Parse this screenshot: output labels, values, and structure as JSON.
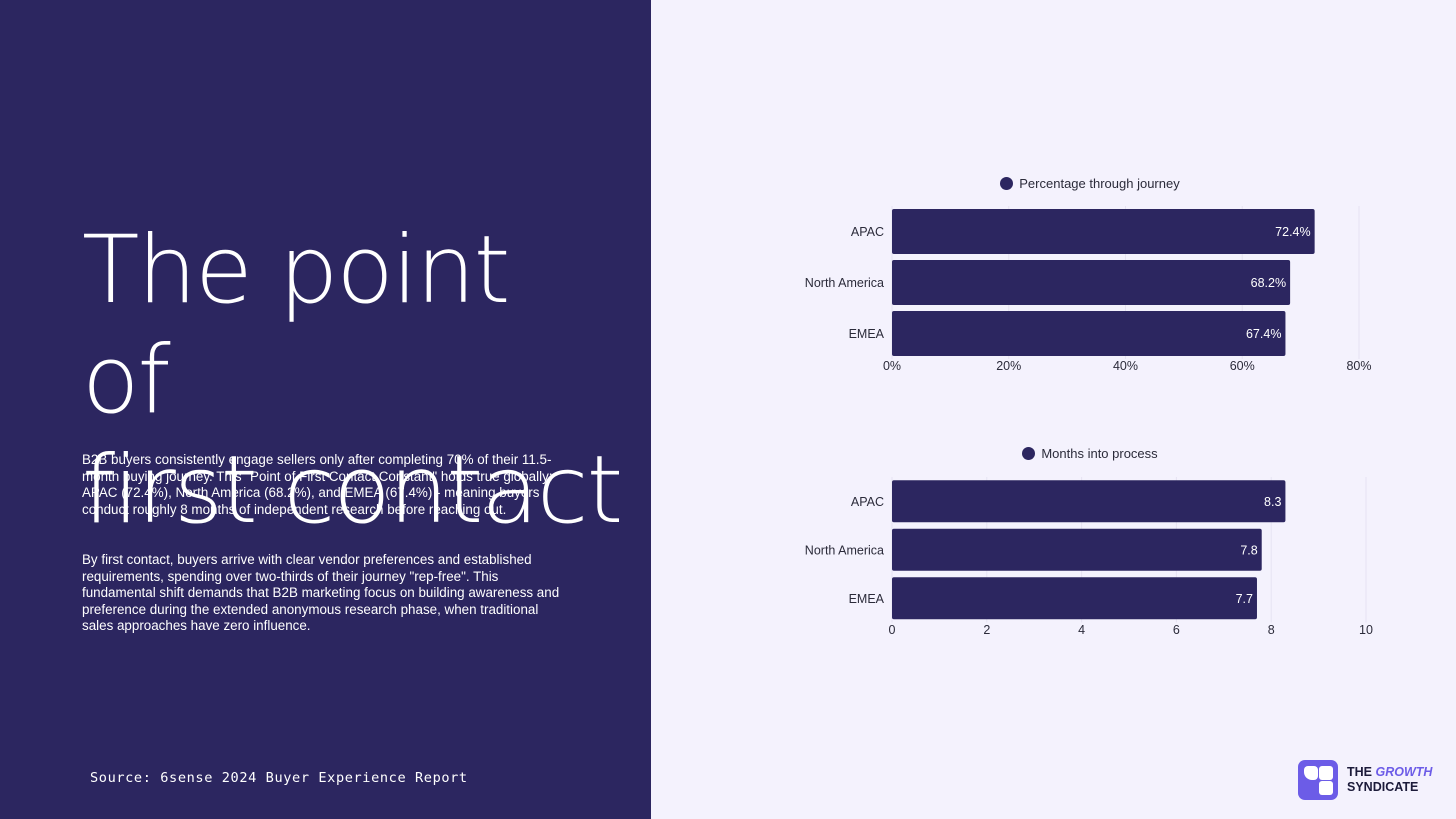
{
  "left_panel": {
    "title": "The point of\nfirst contact",
    "paragraph1": "B2B buyers consistently engage sellers only after completing 70% of their 11.5-month buying journey. This \"Point of First Contact Constant\" holds true globally: APAC (72.4%), North America (68.2%), and EMEA (67.4%) - meaning buyers conduct roughly 8 months of independent research before reaching out.",
    "paragraph2": "By first contact, buyers arrive with clear vendor preferences and established requirements, spending over two-thirds of their journey \"rep-free\". This fundamental shift demands that B2B marketing focus on building awareness and preference during the extended anonymous research phase, when traditional sales approaches have zero influence.",
    "source": "Source: 6sense 2024 Buyer Experience Report"
  },
  "brand": {
    "the": "THE",
    "growth": "GROWTH",
    "syndicate": "SYNDICATE",
    "logo_color": "#6c5ce7"
  },
  "chart_data": [
    {
      "type": "bar",
      "orientation": "horizontal",
      "categories": [
        "APAC",
        "North America",
        "EMEA"
      ],
      "series": [
        {
          "name": "Percentage through journey",
          "values": [
            72.4,
            68.2,
            67.4
          ]
        }
      ],
      "data_labels": [
        "72.4%",
        "68.2%",
        "67.4%"
      ],
      "xlim": [
        0,
        80
      ],
      "xticks": [
        0,
        20,
        40,
        60,
        80
      ],
      "xtick_labels": [
        "0%",
        "20%",
        "40%",
        "60%",
        "80%"
      ],
      "legend_position": "top-center",
      "grid": true,
      "bar_color": "#2c2660"
    },
    {
      "type": "bar",
      "orientation": "horizontal",
      "categories": [
        "APAC",
        "North America",
        "EMEA"
      ],
      "series": [
        {
          "name": "Months into process",
          "values": [
            8.3,
            7.8,
            7.7
          ]
        }
      ],
      "data_labels": [
        "8.3",
        "7.8",
        "7.7"
      ],
      "xlim": [
        0,
        10
      ],
      "xticks": [
        0,
        2,
        4,
        6,
        8,
        10
      ],
      "xtick_labels": [
        "0",
        "2",
        "4",
        "6",
        "8",
        "10"
      ],
      "legend_position": "top-center",
      "grid": true,
      "bar_color": "#2c2660"
    }
  ]
}
